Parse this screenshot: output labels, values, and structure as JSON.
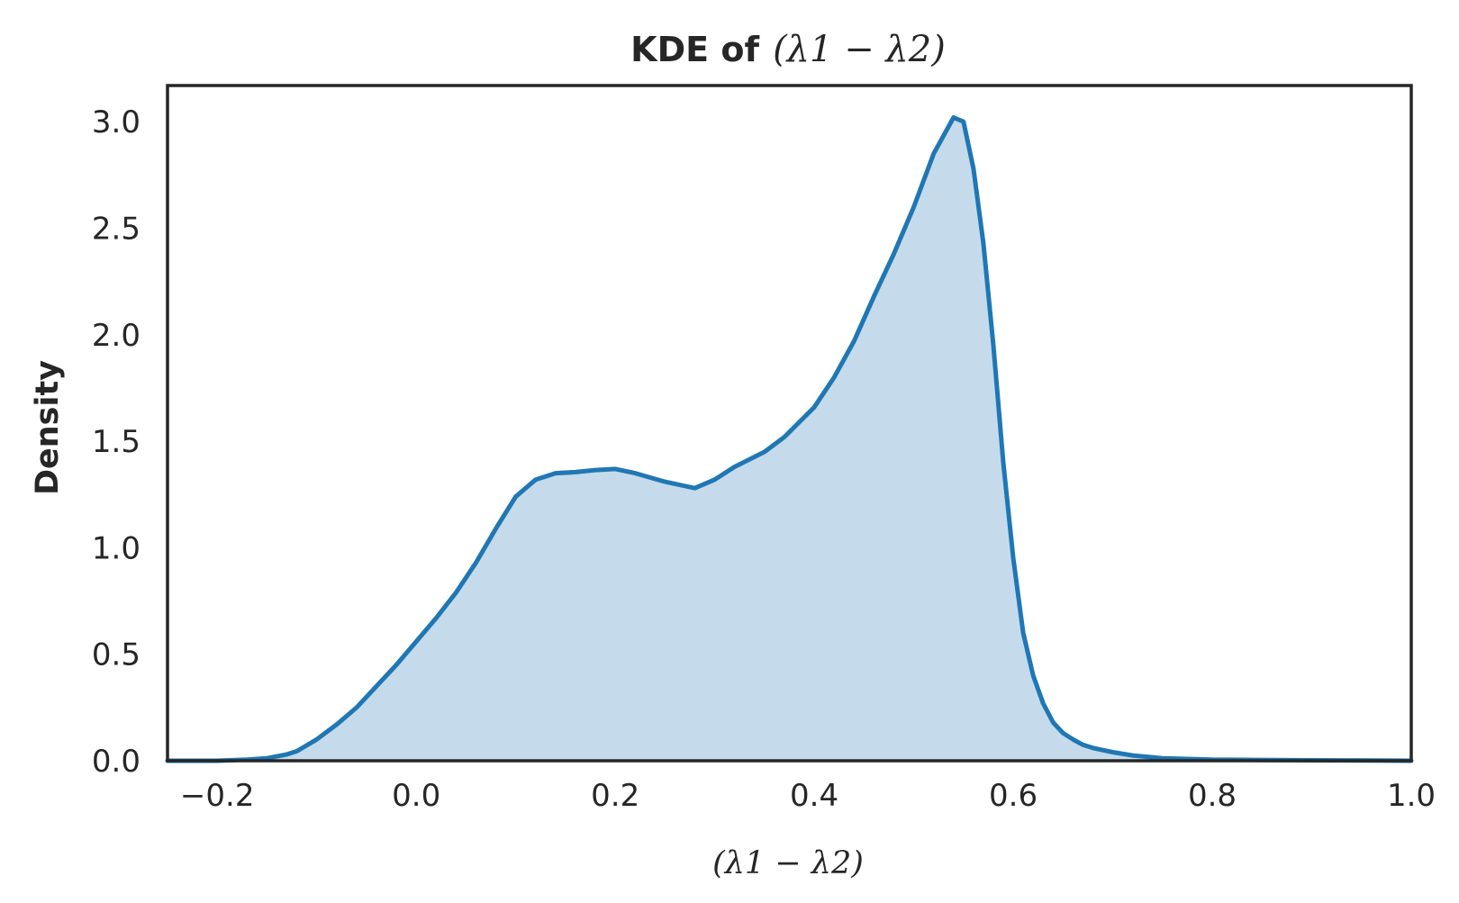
{
  "chart_data": {
    "type": "area",
    "title": "KDE of",
    "title_math": "(λ1 − λ2)",
    "xlabel_math": "(λ1 − λ2)",
    "ylabel": "Density",
    "xlim": [
      -0.25,
      1.0
    ],
    "ylim": [
      0,
      3.17
    ],
    "x_ticks": [
      "−0.2",
      "0.0",
      "0.2",
      "0.4",
      "0.6",
      "0.8",
      "1.0"
    ],
    "x_tick_values": [
      -0.2,
      0.0,
      0.2,
      0.4,
      0.6,
      0.8,
      1.0
    ],
    "y_ticks": [
      "0.0",
      "0.5",
      "1.0",
      "1.5",
      "2.0",
      "2.5",
      "3.0"
    ],
    "y_tick_values": [
      0,
      0.5,
      1.0,
      1.5,
      2.0,
      2.5,
      3.0
    ],
    "grid": false,
    "line_color": "#1f77b4",
    "fill_color": "#c5dbec",
    "x": [
      -0.25,
      -0.2,
      -0.17,
      -0.15,
      -0.13,
      -0.12,
      -0.1,
      -0.08,
      -0.06,
      -0.04,
      -0.02,
      0.0,
      0.02,
      0.04,
      0.06,
      0.08,
      0.1,
      0.12,
      0.14,
      0.16,
      0.18,
      0.2,
      0.22,
      0.25,
      0.28,
      0.3,
      0.32,
      0.35,
      0.37,
      0.4,
      0.42,
      0.44,
      0.46,
      0.48,
      0.5,
      0.52,
      0.54,
      0.55,
      0.56,
      0.57,
      0.58,
      0.59,
      0.6,
      0.61,
      0.62,
      0.63,
      0.64,
      0.65,
      0.66,
      0.67,
      0.68,
      0.7,
      0.72,
      0.75,
      0.8,
      0.9,
      1.0
    ],
    "y": [
      0.0,
      0.0,
      0.005,
      0.012,
      0.03,
      0.045,
      0.1,
      0.17,
      0.25,
      0.35,
      0.45,
      0.56,
      0.67,
      0.79,
      0.93,
      1.09,
      1.24,
      1.32,
      1.35,
      1.355,
      1.365,
      1.37,
      1.35,
      1.31,
      1.28,
      1.32,
      1.38,
      1.45,
      1.52,
      1.66,
      1.8,
      1.97,
      2.18,
      2.38,
      2.6,
      2.85,
      3.02,
      3.0,
      2.78,
      2.43,
      1.95,
      1.4,
      0.95,
      0.6,
      0.4,
      0.27,
      0.18,
      0.13,
      0.1,
      0.075,
      0.06,
      0.04,
      0.025,
      0.012,
      0.005,
      0.002,
      0.0
    ]
  }
}
